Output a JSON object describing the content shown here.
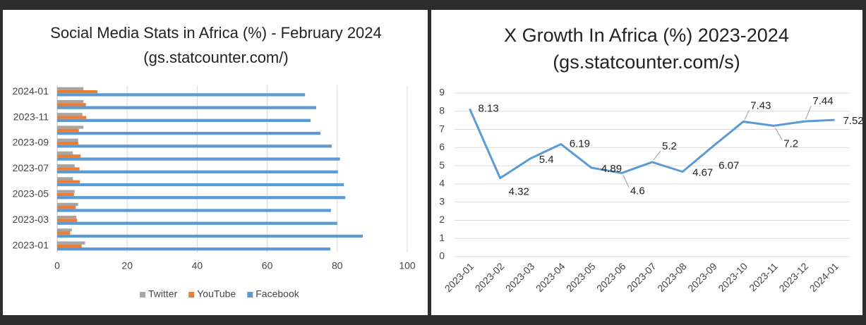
{
  "chart_data": [
    {
      "type": "bar",
      "orientation": "horizontal",
      "title": "Social Media Stats in Africa (%) - February 2024",
      "subtitle": "(gs.statcounter.com/)",
      "categories": [
        "2023-01",
        null,
        "2023-03",
        null,
        "2023-05",
        null,
        "2023-07",
        null,
        "2023-09",
        null,
        "2023-11",
        null,
        "2024-01"
      ],
      "series": [
        {
          "name": "Twitter",
          "color": "#a5a5a5",
          "values": [
            8,
            4.2,
            5.5,
            6,
            5,
            4.5,
            5,
            4.5,
            6,
            7.5,
            7.2,
            7.5,
            7.5
          ]
        },
        {
          "name": "YouTube",
          "color": "#ed7d31",
          "values": [
            7,
            3.7,
            5.7,
            5.3,
            4.8,
            6.5,
            6.4,
            6.7,
            6,
            6.2,
            8.3,
            8.2,
            11.5
          ]
        },
        {
          "name": "Facebook",
          "color": "#5b9bd5",
          "values": [
            78,
            87.3,
            80,
            78.2,
            82.3,
            81.9,
            80.2,
            80.8,
            78.4,
            75.2,
            72.4,
            74,
            70.8
          ]
        }
      ],
      "xlim": [
        0,
        100
      ],
      "xticks": [
        0,
        20,
        40,
        60,
        80,
        100
      ],
      "grid": true,
      "legend": "bottom"
    },
    {
      "type": "line",
      "title": "X Growth In Africa (%) 2023-2024",
      "subtitle": "(gs.statcounter.com/s)",
      "categories": [
        "2023-01",
        "2023-02",
        "2023-03",
        "2023-04",
        "2023-05",
        "2023-06",
        "2023-07",
        "2023-08",
        "2023-09",
        "2023-10",
        "2023-11",
        "2023-12",
        "2024-01"
      ],
      "values": [
        8.13,
        4.32,
        5.4,
        6.19,
        4.89,
        4.6,
        5.2,
        4.67,
        6.07,
        7.43,
        7.2,
        7.44,
        7.52
      ],
      "color": "#5b9bd5",
      "ylim": [
        0,
        9
      ],
      "yticks": [
        0,
        1,
        2,
        3,
        4,
        5,
        6,
        7,
        8,
        9
      ],
      "grid": true
    }
  ]
}
